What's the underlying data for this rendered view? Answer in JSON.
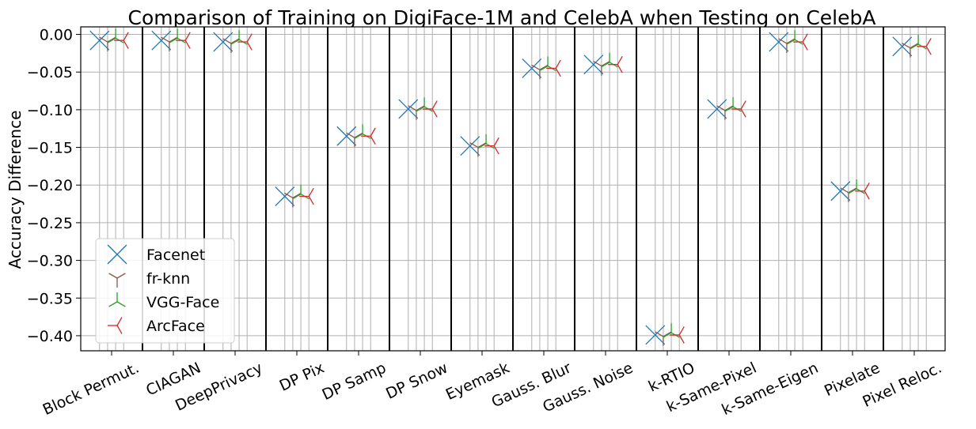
{
  "chart_data": {
    "type": "scatter",
    "title": "Comparison of Training on DigiFace-1M and CelebA when Testing on CelebA",
    "xlabel": "",
    "ylabel": "Accuracy Difference",
    "categories": [
      "Block Permut.",
      "CIAGAN",
      "DeepPrivacy",
      "DP Pix",
      "DP Samp",
      "DP Snow",
      "Eyemask",
      "Gauss. Blur",
      "Gauss. Noise",
      "k-RTIO",
      "k-Same-Pixel",
      "k-Same-Eigen",
      "Pixelate",
      "Pixel Reloc."
    ],
    "ylim": [
      -0.42,
      0.01
    ],
    "yticks": [
      0.0,
      -0.05,
      -0.1,
      -0.15,
      -0.2,
      -0.25,
      -0.3,
      -0.35,
      -0.4
    ],
    "ytick_labels": [
      "0.00",
      "−0.05",
      "−0.10",
      "−0.15",
      "−0.20",
      "−0.25",
      "−0.30",
      "−0.35",
      "−0.40"
    ],
    "grid": true,
    "legend_position": "lower-left",
    "series": [
      {
        "name": "Facenet",
        "marker": "x",
        "color": "#1f77b4",
        "values": [
          -0.008,
          -0.008,
          -0.01,
          -0.215,
          -0.135,
          -0.099,
          -0.148,
          -0.045,
          -0.04,
          -0.399,
          -0.099,
          -0.01,
          -0.208,
          -0.016
        ]
      },
      {
        "name": "fr-knn",
        "marker": "tri_down",
        "color": "#8c564b",
        "values": [
          -0.01,
          -0.01,
          -0.012,
          -0.217,
          -0.137,
          -0.101,
          -0.15,
          -0.047,
          -0.042,
          -0.401,
          -0.101,
          -0.012,
          -0.21,
          -0.018
        ]
      },
      {
        "name": "VGG-Face",
        "marker": "tri_up",
        "color": "#2ca02c",
        "values": [
          -0.005,
          -0.005,
          -0.007,
          -0.212,
          -0.132,
          -0.096,
          -0.145,
          -0.042,
          -0.037,
          -0.396,
          -0.096,
          -0.007,
          -0.205,
          -0.013
        ]
      },
      {
        "name": "ArcFace",
        "marker": "tri_left",
        "color": "#d62728",
        "values": [
          -0.008,
          -0.008,
          -0.01,
          -0.215,
          -0.135,
          -0.099,
          -0.148,
          -0.045,
          -0.04,
          -0.399,
          -0.099,
          -0.01,
          -0.208,
          -0.016
        ]
      }
    ]
  }
}
